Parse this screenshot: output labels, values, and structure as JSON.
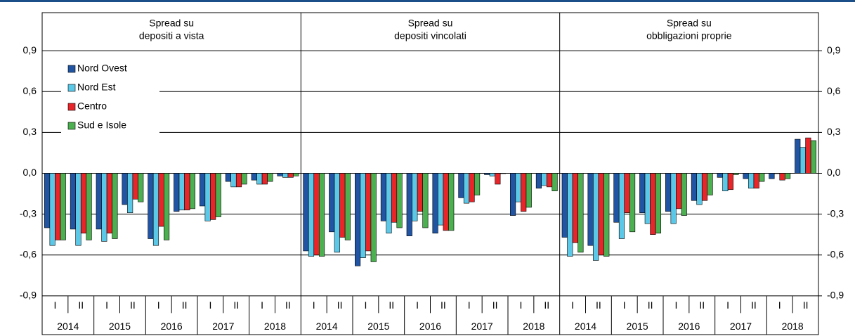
{
  "chart_data": [
    {
      "type": "bar",
      "title": [
        "Spread su",
        "depositi a vista"
      ],
      "categories": [
        "I",
        "II",
        "I",
        "II",
        "I",
        "II",
        "I",
        "II",
        "I",
        "II"
      ],
      "groups": [
        "2014",
        "2015",
        "2016",
        "2017",
        "2018"
      ],
      "ylim": [
        -1.2,
        1.2
      ],
      "yticks": [
        {
          "value": -0.9,
          "label": "-0,9"
        },
        {
          "value": -0.6,
          "label": "-0,6"
        },
        {
          "value": -0.3,
          "label": "-0,3"
        },
        {
          "value": 0,
          "label": "0,0"
        },
        {
          "value": 0.3,
          "label": "0,3"
        },
        {
          "value": 0.6,
          "label": "0,6"
        },
        {
          "value": 0.9,
          "label": "0,9"
        }
      ],
      "grid": true,
      "legend": "upper left",
      "series": [
        {
          "name": "Nord Ovest",
          "color": "#2155a3",
          "values": [
            -0.4,
            -0.41,
            -0.41,
            -0.23,
            -0.48,
            -0.28,
            -0.24,
            -0.06,
            -0.05,
            -0.02
          ]
        },
        {
          "name": "Nord Est",
          "color": "#5cc8e8",
          "values": [
            -0.53,
            -0.53,
            -0.5,
            -0.29,
            -0.53,
            -0.27,
            -0.35,
            -0.1,
            -0.08,
            -0.03
          ]
        },
        {
          "name": "Centro",
          "color": "#e8262a",
          "values": [
            -0.49,
            -0.44,
            -0.44,
            -0.19,
            -0.39,
            -0.27,
            -0.34,
            -0.1,
            -0.08,
            -0.03
          ]
        },
        {
          "name": "Sud e Isole",
          "color": "#4caf50",
          "values": [
            -0.49,
            -0.49,
            -0.48,
            -0.21,
            -0.49,
            -0.26,
            -0.32,
            -0.08,
            -0.06,
            -0.02
          ]
        }
      ]
    },
    {
      "type": "bar",
      "title": [
        "Spread su",
        "depositi vincolati"
      ],
      "categories": [
        "I",
        "II",
        "I",
        "II",
        "I",
        "II",
        "I",
        "II",
        "I",
        "II"
      ],
      "groups": [
        "2014",
        "2015",
        "2016",
        "2017",
        "2018"
      ],
      "ylim": [
        -1.2,
        1.2
      ],
      "series": [
        {
          "name": "Nord Ovest",
          "color": "#2155a3",
          "values": [
            -0.57,
            -0.43,
            -0.68,
            -0.35,
            -0.46,
            -0.44,
            -0.18,
            -0.01,
            -0.31,
            -0.11
          ]
        },
        {
          "name": "Nord Est",
          "color": "#5cc8e8",
          "values": [
            -0.61,
            -0.58,
            -0.62,
            -0.44,
            -0.35,
            -0.38,
            -0.22,
            -0.02,
            -0.21,
            -0.09
          ]
        },
        {
          "name": "Centro",
          "color": "#e8262a",
          "values": [
            -0.6,
            -0.47,
            -0.57,
            -0.36,
            -0.28,
            -0.42,
            -0.21,
            -0.08,
            -0.28,
            -0.1
          ]
        },
        {
          "name": "Sud e Isole",
          "color": "#4caf50",
          "values": [
            -0.61,
            -0.49,
            -0.65,
            -0.4,
            -0.4,
            -0.42,
            -0.16,
            0.0,
            -0.25,
            -0.13
          ]
        }
      ]
    },
    {
      "type": "bar",
      "title": [
        "Spread su",
        "obbligazioni proprie"
      ],
      "categories": [
        "I",
        "II",
        "I",
        "II",
        "I",
        "II",
        "I",
        "II",
        "I",
        "II"
      ],
      "groups": [
        "2014",
        "2015",
        "2016",
        "2017",
        "2018"
      ],
      "ylim": [
        -1.2,
        1.2
      ],
      "y2ticks": [
        {
          "value": -0.9,
          "label": "-0,9"
        },
        {
          "value": -0.6,
          "label": "-0,6"
        },
        {
          "value": -0.3,
          "label": "-0,3"
        },
        {
          "value": 0,
          "label": "0,0"
        },
        {
          "value": 0.3,
          "label": "0,3"
        },
        {
          "value": 0.6,
          "label": "0,6"
        },
        {
          "value": 0.9,
          "label": "0,9"
        }
      ],
      "series": [
        {
          "name": "Nord Ovest",
          "color": "#2155a3",
          "values": [
            -0.47,
            -0.53,
            -0.36,
            -0.29,
            -0.28,
            -0.2,
            -0.03,
            -0.04,
            -0.04,
            0.25
          ]
        },
        {
          "name": "Nord Est",
          "color": "#5cc8e8",
          "values": [
            -0.61,
            -0.64,
            -0.48,
            -0.37,
            -0.37,
            -0.23,
            -0.13,
            -0.11,
            0.0,
            0.19
          ]
        },
        {
          "name": "Centro",
          "color": "#e8262a",
          "values": [
            -0.51,
            -0.6,
            -0.29,
            -0.45,
            -0.26,
            -0.2,
            -0.12,
            -0.11,
            -0.05,
            0.26
          ]
        },
        {
          "name": "Sud e Isole",
          "color": "#4caf50",
          "values": [
            -0.58,
            -0.61,
            -0.43,
            -0.44,
            -0.31,
            -0.16,
            -0.01,
            -0.06,
            -0.04,
            0.24
          ]
        }
      ]
    }
  ]
}
